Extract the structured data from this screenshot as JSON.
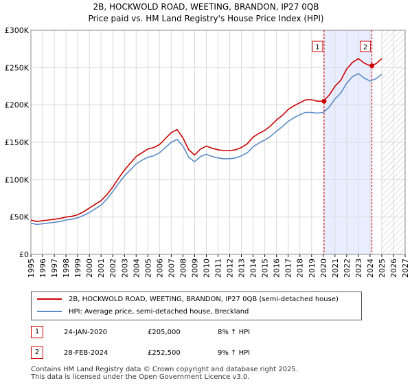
{
  "header": {
    "title": "2B, HOCKWOLD ROAD, WEETING, BRANDON, IP27 0QB",
    "subtitle": "Price paid vs. HM Land Registry's House Price Index (HPI)"
  },
  "colors": {
    "property": "#cc0000",
    "hpi": "#5b8ac6",
    "grid": "#d9d9d9",
    "shade": "#e8eeff",
    "vline": "#cc0000",
    "hatch": "#bbbbbb"
  },
  "chart_data": {
    "type": "line",
    "title": "",
    "xlabel": "",
    "ylabel": "",
    "xlim": [
      1995,
      2027
    ],
    "ylim": [
      0,
      300000
    ],
    "y_ticks": [
      {
        "value": 0,
        "label": "£0"
      },
      {
        "value": 50000,
        "label": "£50K"
      },
      {
        "value": 100000,
        "label": "£100K"
      },
      {
        "value": 150000,
        "label": "£150K"
      },
      {
        "value": 200000,
        "label": "£200K"
      },
      {
        "value": 250000,
        "label": "£250K"
      },
      {
        "value": 300000,
        "label": "£300K"
      }
    ],
    "x_ticks": [
      "1995",
      "1996",
      "1997",
      "1998",
      "1999",
      "2000",
      "2001",
      "2002",
      "2003",
      "2004",
      "2005",
      "2006",
      "2007",
      "2008",
      "2009",
      "2010",
      "2011",
      "2012",
      "2013",
      "2014",
      "2015",
      "2016",
      "2017",
      "2018",
      "2019",
      "2020",
      "2021",
      "2022",
      "2023",
      "2024",
      "2025",
      "2026",
      "2027"
    ],
    "series": [
      {
        "name": "2B, HOCKWOLD ROAD, WEETING, BRANDON, IP27 0QB (semi-detached house)",
        "color": "#cc0000",
        "x": [
          1995,
          1995.5,
          1996,
          1996.5,
          1997,
          1997.5,
          1998,
          1998.5,
          1999,
          1999.5,
          2000,
          2000.5,
          2001,
          2001.5,
          2002,
          2002.5,
          2003,
          2003.5,
          2004,
          2004.5,
          2005,
          2005.5,
          2006,
          2006.5,
          2007,
          2007.5,
          2008,
          2008.5,
          2009,
          2009.5,
          2010,
          2010.5,
          2011,
          2011.5,
          2012,
          2012.5,
          2013,
          2013.5,
          2014,
          2014.5,
          2015,
          2015.5,
          2016,
          2016.5,
          2017,
          2017.5,
          2018,
          2018.5,
          2019,
          2019.5,
          2020,
          2020.5,
          2021,
          2021.5,
          2022,
          2022.5,
          2023,
          2023.5,
          2024,
          2024.5,
          2025
        ],
        "values": [
          46000,
          44000,
          45000,
          46000,
          47000,
          48000,
          50000,
          51000,
          53000,
          57000,
          62000,
          67000,
          72000,
          80000,
          90000,
          102000,
          113000,
          122000,
          131000,
          136000,
          141000,
          143000,
          147000,
          155000,
          163000,
          167000,
          156000,
          140000,
          133000,
          141000,
          145000,
          142000,
          140000,
          139000,
          139000,
          140000,
          143000,
          148000,
          157000,
          162000,
          166000,
          172000,
          180000,
          186000,
          194000,
          199000,
          203000,
          207000,
          207000,
          205000,
          205000,
          213000,
          225000,
          233000,
          248000,
          257000,
          262000,
          256000,
          252500,
          255000,
          262000
        ]
      },
      {
        "name": "HPI: Average price, semi-detached house, Breckland",
        "color": "#5b8ac6",
        "x": [
          1995,
          1995.5,
          1996,
          1996.5,
          1997,
          1997.5,
          1998,
          1998.5,
          1999,
          1999.5,
          2000,
          2000.5,
          2001,
          2001.5,
          2002,
          2002.5,
          2003,
          2003.5,
          2004,
          2004.5,
          2005,
          2005.5,
          2006,
          2006.5,
          2007,
          2007.5,
          2008,
          2008.5,
          2009,
          2009.5,
          2010,
          2010.5,
          2011,
          2011.5,
          2012,
          2012.5,
          2013,
          2013.5,
          2014,
          2014.5,
          2015,
          2015.5,
          2016,
          2016.5,
          2017,
          2017.5,
          2018,
          2018.5,
          2019,
          2019.5,
          2020,
          2020.5,
          2021,
          2021.5,
          2022,
          2022.5,
          2023,
          2023.5,
          2024,
          2024.5,
          2025
        ],
        "values": [
          42000,
          40000,
          41000,
          42000,
          43000,
          44000,
          46000,
          47000,
          49000,
          52000,
          56000,
          61000,
          66000,
          74000,
          84000,
          95000,
          105000,
          113000,
          121000,
          126000,
          130000,
          132000,
          136000,
          143000,
          150000,
          154000,
          145000,
          130000,
          124000,
          131000,
          134000,
          131000,
          129000,
          128000,
          128000,
          129000,
          132000,
          136000,
          144000,
          149000,
          153000,
          158000,
          165000,
          171000,
          178000,
          183000,
          187000,
          190000,
          190000,
          189000,
          190000,
          197000,
          208000,
          216000,
          229000,
          238000,
          242000,
          236000,
          232000,
          235000,
          241000
        ]
      }
    ],
    "sales": [
      {
        "label": "1",
        "x": 2020.07,
        "price": 205000
      },
      {
        "label": "2",
        "x": 2024.16,
        "price": 252500
      }
    ],
    "shaded_region": [
      2020.07,
      2024.16
    ],
    "hatched_from": 2025.0,
    "legend_position": "bottom",
    "grid": true
  },
  "legend": {
    "property_label": "2B, HOCKWOLD ROAD, WEETING, BRANDON, IP27 0QB (semi-detached house)",
    "hpi_label": "HPI: Average price, semi-detached house, Breckland"
  },
  "table": [
    {
      "num": "1",
      "date": "24-JAN-2020",
      "price": "£205,000",
      "hpi": "8% ↑ HPI"
    },
    {
      "num": "2",
      "date": "28-FEB-2024",
      "price": "£252,500",
      "hpi": "9% ↑ HPI"
    }
  ],
  "footer": {
    "line1": "Contains HM Land Registry data © Crown copyright and database right 2025.",
    "line2": "This data is licensed under the Open Government Licence v3.0."
  }
}
